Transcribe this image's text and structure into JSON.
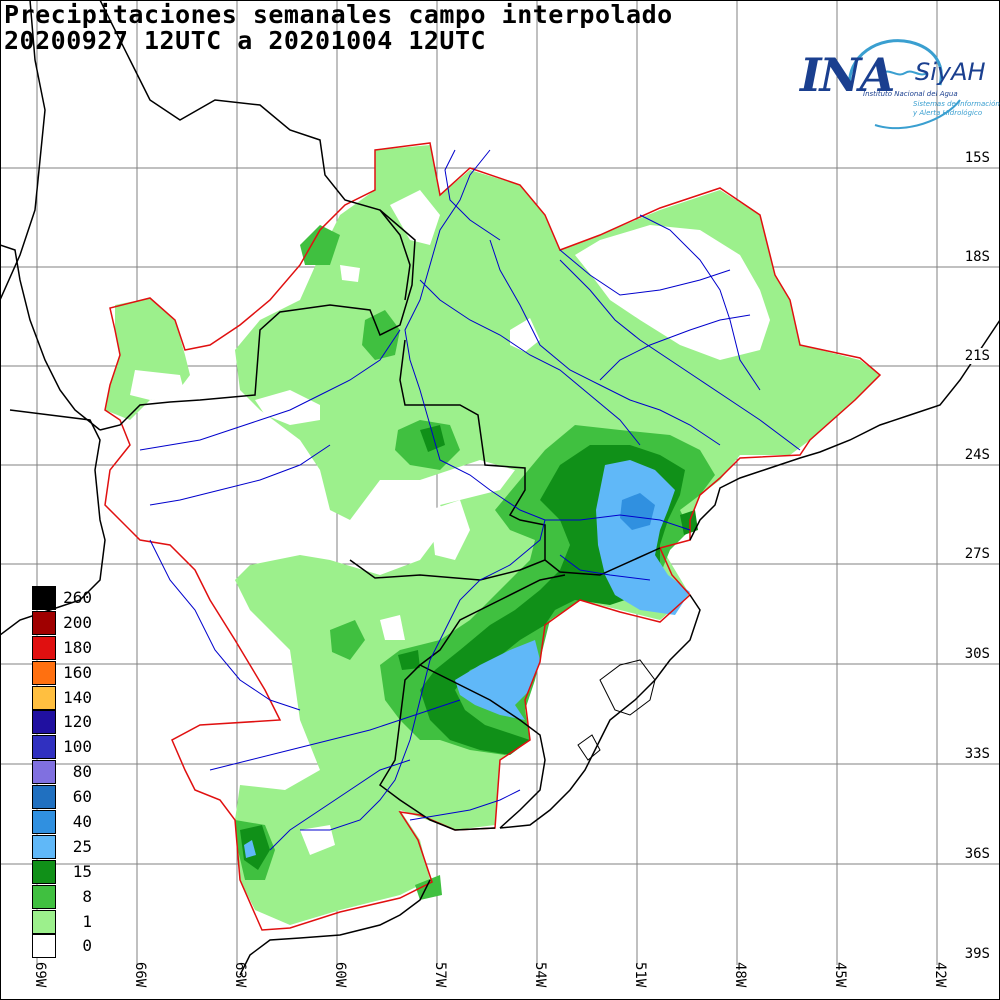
{
  "title": {
    "line1": "Precipitaciones semanales campo interpolado",
    "line2": "20200927 12UTC a 20201004 12UTC"
  },
  "logo": {
    "brand": "INA",
    "system": "SiyAH",
    "institution": "Instituto Nacional del Agua",
    "tagline1": "Sistemas de Información",
    "tagline2": "y Alerta Hidrológico"
  },
  "latitude_labels": [
    "15S",
    "18S",
    "21S",
    "24S",
    "27S",
    "30S",
    "33S",
    "36S",
    "39S"
  ],
  "longitude_labels": [
    "69W",
    "66W",
    "63W",
    "60W",
    "57W",
    "54W",
    "51W",
    "48W",
    "45W",
    "42W"
  ],
  "legend": [
    {
      "value": "260",
      "color": "#000000"
    },
    {
      "value": "200",
      "color": "#a00000"
    },
    {
      "value": "180",
      "color": "#e01010"
    },
    {
      "value": "160",
      "color": "#ff7010"
    },
    {
      "value": "140",
      "color": "#ffbf40"
    },
    {
      "value": "120",
      "color": "#2010a0"
    },
    {
      "value": "100",
      "color": "#3030c0"
    },
    {
      "value": "80",
      "color": "#8070e0"
    },
    {
      "value": "60",
      "color": "#2070c0"
    },
    {
      "value": "40",
      "color": "#3090e0"
    },
    {
      "value": "25",
      "color": "#60b8f8"
    },
    {
      "value": "15",
      "color": "#109018"
    },
    {
      "value": "8",
      "color": "#40c040"
    },
    {
      "value": "1",
      "color": "#9cf08c"
    },
    {
      "value": "0",
      "color": "#ffffff"
    }
  ],
  "colors": {
    "basin_outline": "#e01010",
    "rivers": "#0000cc",
    "borders": "#000000",
    "grid": "#808080"
  }
}
